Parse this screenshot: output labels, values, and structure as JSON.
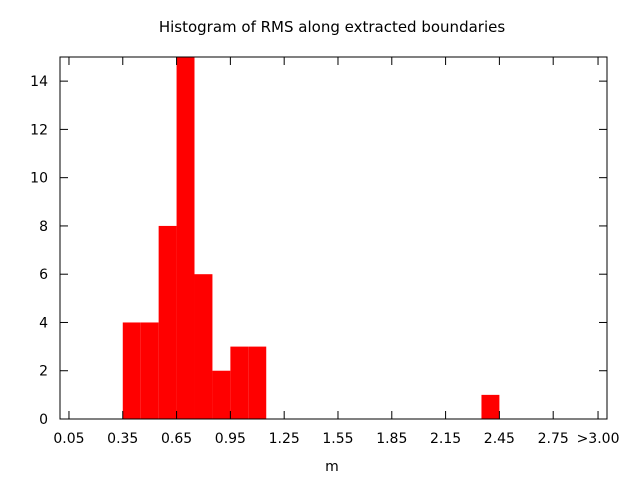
{
  "chart_data": {
    "type": "bar",
    "title": "Histogram of RMS along extracted boundaries",
    "xlabel": "m",
    "ylabel": "",
    "bin_width": 0.1,
    "x_tick_labels": [
      "0.05",
      "0.35",
      "0.65",
      "0.95",
      "1.25",
      "1.55",
      "1.85",
      "2.15",
      "2.45",
      "2.75",
      ">3.00"
    ],
    "x_tick_values": [
      0.05,
      0.35,
      0.65,
      0.95,
      1.25,
      1.55,
      1.85,
      2.15,
      2.45,
      2.75,
      3.0
    ],
    "xlim": [
      0.0,
      3.05
    ],
    "ylim": [
      0,
      15
    ],
    "y_ticks": [
      0,
      2,
      4,
      6,
      8,
      10,
      12,
      14
    ],
    "bars": [
      {
        "x": 0.4,
        "value": 4
      },
      {
        "x": 0.5,
        "value": 4
      },
      {
        "x": 0.6,
        "value": 8
      },
      {
        "x": 0.7,
        "value": 15
      },
      {
        "x": 0.8,
        "value": 6
      },
      {
        "x": 0.9,
        "value": 2
      },
      {
        "x": 1.0,
        "value": 3
      },
      {
        "x": 1.1,
        "value": 3
      },
      {
        "x": 2.4,
        "value": 1
      }
    ],
    "bar_color": "#ff0000",
    "grid": false,
    "legend": "none"
  }
}
